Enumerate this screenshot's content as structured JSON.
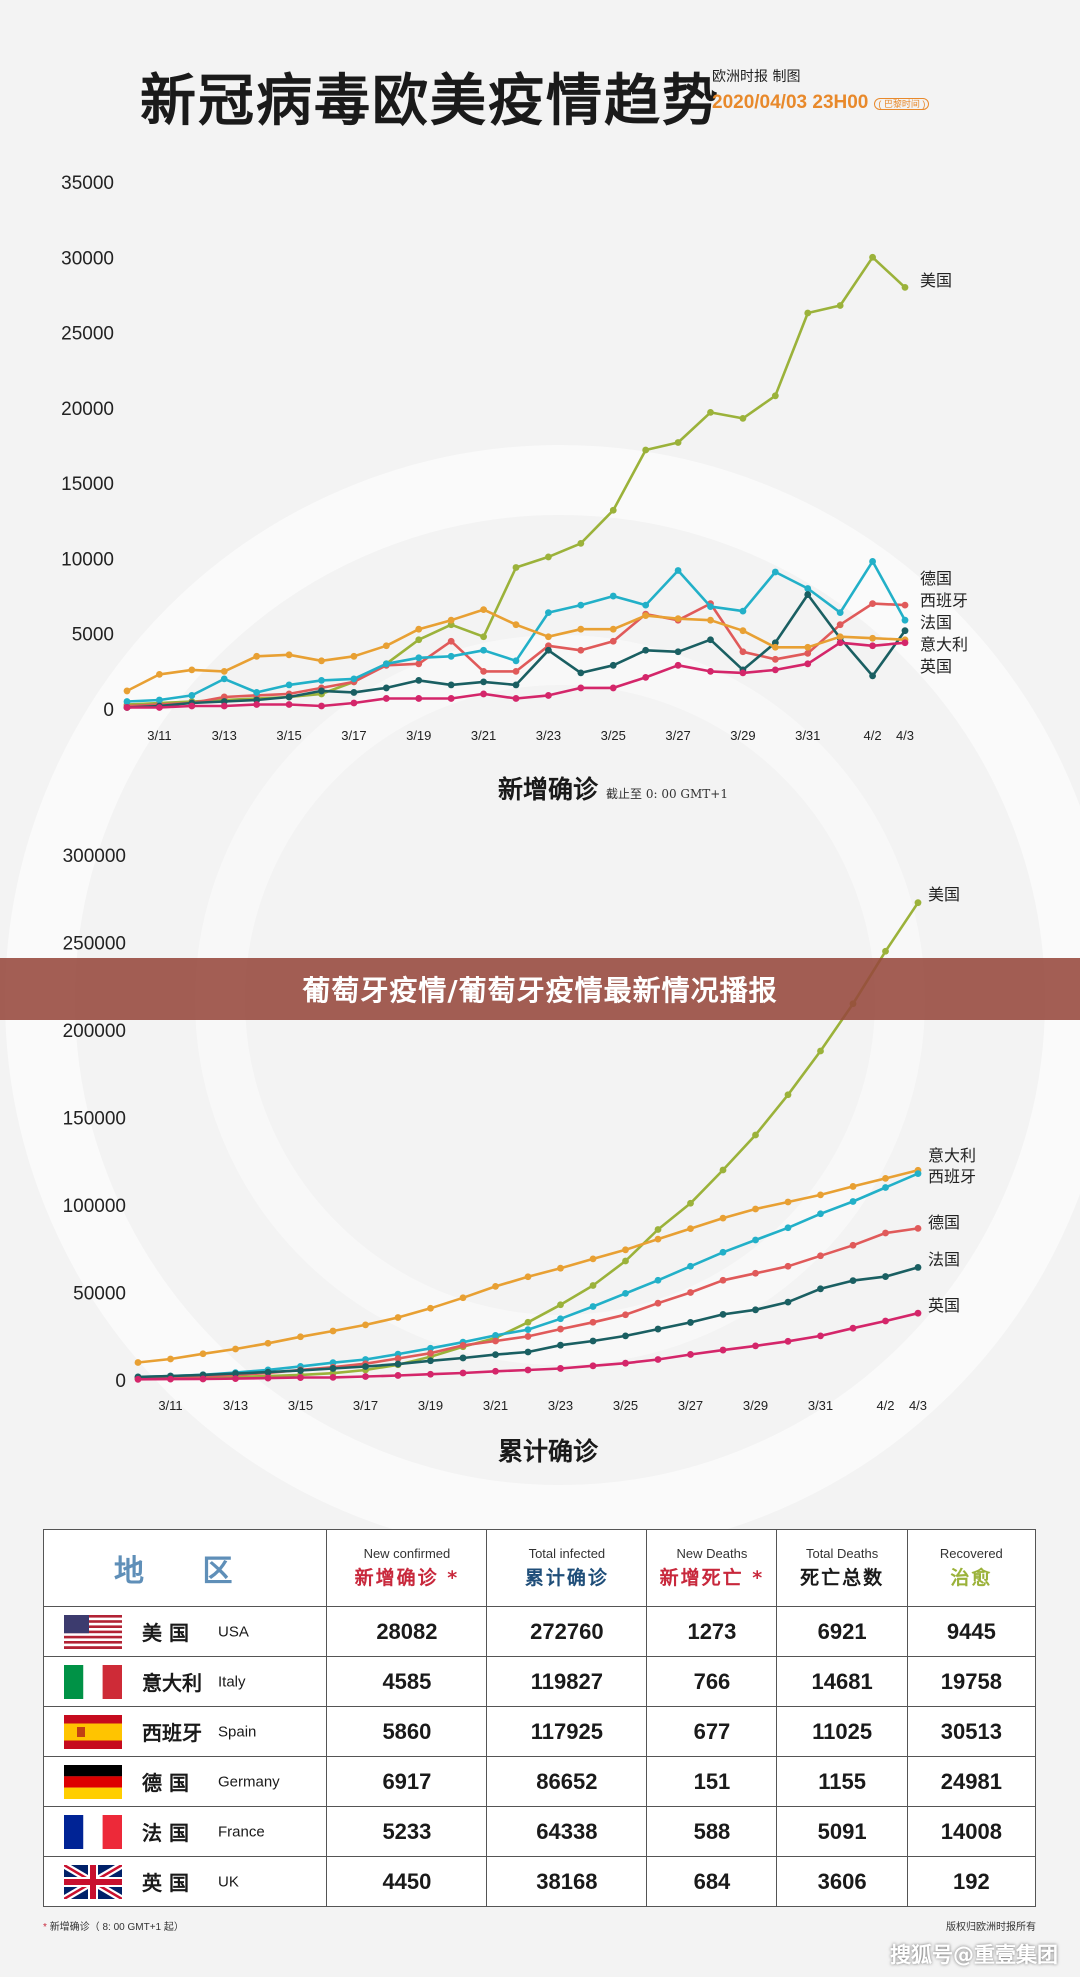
{
  "header": {
    "title": "新冠病毒欧美疫情趋势",
    "publisher": "欧洲时报 制图",
    "datetime": "2020/04/03 23H00",
    "timezone_tag": "( 巴黎时间 )"
  },
  "banner": {
    "text": "葡萄牙疫情/葡萄牙疫情最新情况播报"
  },
  "colors": {
    "美国": "#9bb23a",
    "德国": "#e05a5a",
    "西班牙": "#22b0c8",
    "法国": "#1a5f62",
    "意大利": "#e8a033",
    "英国": "#d4266a"
  },
  "chart_data": [
    {
      "type": "line",
      "title": "",
      "caption": "新增确诊",
      "caption_note": "截止至 0: 00 GMT+1",
      "xlabel": "",
      "ylabel": "",
      "ylim": [
        0,
        35000
      ],
      "yticks": [
        0,
        5000,
        10000,
        15000,
        20000,
        25000,
        30000,
        35000
      ],
      "x": [
        "3/10",
        "3/11",
        "3/12",
        "3/13",
        "3/14",
        "3/15",
        "3/16",
        "3/17",
        "3/18",
        "3/19",
        "3/20",
        "3/21",
        "3/22",
        "3/23",
        "3/24",
        "3/25",
        "3/26",
        "3/27",
        "3/28",
        "3/29",
        "3/30",
        "3/31",
        "4/1",
        "4/2",
        "4/3"
      ],
      "xtick_labels": [
        "3/11",
        "3/13",
        "3/15",
        "3/17",
        "3/19",
        "3/21",
        "3/23",
        "3/25",
        "3/27",
        "3/29",
        "3/31",
        "4/2",
        "4/3"
      ],
      "grid": false,
      "legend": "end-of-line labels",
      "series": [
        {
          "name": "美国",
          "values": [
            300,
            400,
            500,
            600,
            700,
            800,
            1000,
            1800,
            3000,
            4600,
            5600,
            4800,
            9400,
            10100,
            11000,
            13200,
            17200,
            17700,
            19700,
            19300,
            20800,
            26300,
            26800,
            30000,
            28000
          ]
        },
        {
          "name": "德国",
          "values": [
            200,
            300,
            400,
            800,
            900,
            1000,
            1400,
            1800,
            2900,
            3000,
            4500,
            2500,
            2500,
            4200,
            3900,
            4500,
            6300,
            5900,
            7000,
            3800,
            3300,
            3700,
            5600,
            7000,
            6900
          ]
        },
        {
          "name": "西班牙",
          "values": [
            500,
            600,
            900,
            2000,
            1100,
            1600,
            1900,
            2000,
            3000,
            3400,
            3500,
            3900,
            3200,
            6400,
            6900,
            7500,
            6900,
            9200,
            6800,
            6500,
            9100,
            8000,
            6400,
            9800,
            5900
          ]
        },
        {
          "name": "法国",
          "values": [
            100,
            200,
            400,
            500,
            600,
            800,
            1200,
            1100,
            1400,
            1900,
            1600,
            1800,
            1600,
            3900,
            2400,
            2900,
            3900,
            3800,
            4600,
            2600,
            4400,
            7600,
            4700,
            2200,
            5200
          ]
        },
        {
          "name": "意大利",
          "values": [
            1200,
            2300,
            2600,
            2500,
            3500,
            3600,
            3200,
            3500,
            4200,
            5300,
            5900,
            6600,
            5600,
            4800,
            5300,
            5300,
            6200,
            6000,
            5900,
            5200,
            4100,
            4100,
            4800,
            4700,
            4600
          ]
        },
        {
          "name": "英国",
          "values": [
            100,
            100,
            200,
            200,
            300,
            300,
            200,
            400,
            700,
            700,
            700,
            1000,
            700,
            900,
            1400,
            1400,
            2100,
            2900,
            2500,
            2400,
            2600,
            3000,
            4400,
            4200,
            4400
          ]
        }
      ]
    },
    {
      "type": "line",
      "title": "",
      "caption": "累计确诊",
      "xlabel": "",
      "ylabel": "",
      "ylim": [
        0,
        300000
      ],
      "yticks": [
        0,
        50000,
        100000,
        150000,
        200000,
        250000,
        300000
      ],
      "x": [
        "3/10",
        "3/11",
        "3/12",
        "3/13",
        "3/14",
        "3/15",
        "3/16",
        "3/17",
        "3/18",
        "3/19",
        "3/20",
        "3/21",
        "3/22",
        "3/23",
        "3/24",
        "3/25",
        "3/26",
        "3/27",
        "3/28",
        "3/29",
        "3/30",
        "3/31",
        "4/1",
        "4/2",
        "4/3"
      ],
      "xtick_labels": [
        "3/11",
        "3/13",
        "3/15",
        "3/17",
        "3/19",
        "3/21",
        "3/23",
        "3/25",
        "3/27",
        "3/29",
        "3/31",
        "4/2",
        "4/3"
      ],
      "grid": false,
      "legend": "end-of-line labels",
      "series": [
        {
          "name": "美国",
          "values": [
            800,
            1000,
            1300,
            1700,
            2200,
            2900,
            3900,
            5700,
            8700,
            13300,
            19000,
            24000,
            33000,
            43000,
            54000,
            68000,
            86000,
            101000,
            120000,
            140000,
            163000,
            188000,
            215000,
            245000,
            272760
          ]
        },
        {
          "name": "意大利",
          "values": [
            10000,
            12000,
            15000,
            17700,
            21000,
            24700,
            28000,
            31500,
            35700,
            41000,
            47000,
            53500,
            59000,
            63900,
            69200,
            74400,
            80500,
            86500,
            92500,
            97700,
            101700,
            105800,
            110600,
            115200,
            119827
          ]
        },
        {
          "name": "西班牙",
          "values": [
            1700,
            2200,
            3000,
            4200,
            5800,
            7800,
            9900,
            11700,
            14800,
            18100,
            21600,
            25500,
            28800,
            35000,
            42000,
            49500,
            57000,
            65000,
            73000,
            80000,
            87000,
            95000,
            102000,
            110000,
            117925
          ]
        },
        {
          "name": "德国",
          "values": [
            1400,
            1700,
            2000,
            3000,
            4000,
            5800,
            7300,
            9300,
            12300,
            15300,
            19800,
            22300,
            24900,
            29100,
            33000,
            37300,
            43900,
            50000,
            57000,
            61000,
            65000,
            71000,
            77000,
            84000,
            86652
          ]
        },
        {
          "name": "法国",
          "values": [
            1800,
            2300,
            2900,
            3700,
            4500,
            5400,
            6600,
            7700,
            9100,
            11000,
            12600,
            14500,
            16000,
            19900,
            22300,
            25200,
            29100,
            32900,
            37500,
            40100,
            44500,
            52100,
            56800,
            59100,
            64338
          ]
        },
        {
          "name": "英国",
          "values": [
            400,
            500,
            600,
            800,
            1100,
            1400,
            1500,
            2000,
            2600,
            3300,
            4000,
            5000,
            5700,
            6600,
            8100,
            9600,
            11700,
            14600,
            17100,
            19500,
            22100,
            25200,
            29600,
            33700,
            38168
          ]
        }
      ]
    }
  ],
  "table": {
    "headers": {
      "region": "地  区",
      "new_confirmed_en": "New confirmed",
      "new_confirmed_zh": "新增确诊 *",
      "total_infected_en": "Total infected",
      "total_infected_zh": "累计确诊",
      "new_deaths_en": "New Deaths",
      "new_deaths_zh": "新增死亡 *",
      "total_deaths_en": "Total Deaths",
      "total_deaths_zh": "死亡总数",
      "recovered_en": "Recovered",
      "recovered_zh": "治愈"
    },
    "rows": [
      {
        "flag": "usa-flag-icon",
        "cn": "美  国",
        "en": "USA",
        "new_confirmed": "28082",
        "total_infected": "272760",
        "new_deaths": "1273",
        "total_deaths": "6921",
        "recovered": "9445"
      },
      {
        "flag": "italy-flag-icon",
        "cn": "意大利",
        "en": "Italy",
        "new_confirmed": "4585",
        "total_infected": "119827",
        "new_deaths": "766",
        "total_deaths": "14681",
        "recovered": "19758"
      },
      {
        "flag": "spain-flag-icon",
        "cn": "西班牙",
        "en": "Spain",
        "new_confirmed": "5860",
        "total_infected": "117925",
        "new_deaths": "677",
        "total_deaths": "11025",
        "recovered": "30513"
      },
      {
        "flag": "germany-flag-icon",
        "cn": "德  国",
        "en": "Germany",
        "new_confirmed": "6917",
        "total_infected": "86652",
        "new_deaths": "151",
        "total_deaths": "1155",
        "recovered": "24981"
      },
      {
        "flag": "france-flag-icon",
        "cn": "法  国",
        "en": "France",
        "new_confirmed": "5233",
        "total_infected": "64338",
        "new_deaths": "588",
        "total_deaths": "5091",
        "recovered": "14008"
      },
      {
        "flag": "uk-flag-icon",
        "cn": "英  国",
        "en": "UK",
        "new_confirmed": "4450",
        "total_infected": "38168",
        "new_deaths": "684",
        "total_deaths": "3606",
        "recovered": "192"
      }
    ]
  },
  "footer": {
    "footnote_star": "*",
    "footnote": "新增确诊（ 8: 00 GMT+1 起）",
    "copyright": "版权归欧洲时报所有",
    "watermark": "搜狐号@重壹集团"
  }
}
